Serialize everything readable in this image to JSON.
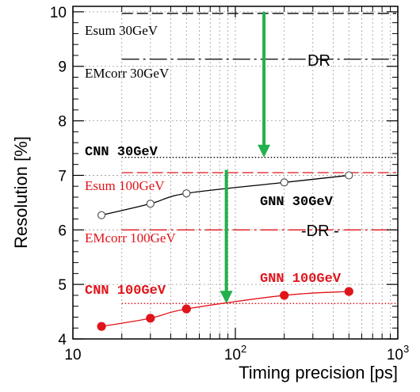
{
  "chart_data": {
    "type": "line",
    "xlabel": "Timing precision [ps]",
    "ylabel": "Resolution [%]",
    "xscale": "log",
    "xlim": [
      10,
      1000
    ],
    "ylim": [
      4,
      10.1
    ],
    "grid": true,
    "x_ticks": [
      {
        "value": 10,
        "label": "10"
      },
      {
        "value": 100,
        "label": "10",
        "sup": "2"
      },
      {
        "value": 1000,
        "label": "10",
        "sup": "3"
      }
    ],
    "y_ticks": [
      "4",
      "5",
      "6",
      "7",
      "8",
      "9",
      "10"
    ],
    "series": [
      {
        "name": "GNN 30GeV",
        "color": "#000000",
        "marker": "open-circle",
        "x": [
          15,
          30,
          50,
          200,
          500
        ],
        "y": [
          6.27,
          6.48,
          6.67,
          6.87,
          7.0
        ]
      },
      {
        "name": "GNN 100GeV",
        "color": "#e0141b",
        "marker": "filled-circle",
        "x": [
          15,
          30,
          50,
          200,
          500
        ],
        "y": [
          4.23,
          4.38,
          4.55,
          4.8,
          4.87
        ]
      }
    ],
    "reference_lines": [
      {
        "label": "Esum 30GeV",
        "y": 9.97,
        "style": "long-dash",
        "color": "#000000",
        "x_from": 20,
        "x_to": 1000
      },
      {
        "label": "EMcorr 30GeV",
        "y": 9.13,
        "style": "dash-dot",
        "color": "#000000",
        "x_from": 20,
        "x_to": 1000
      },
      {
        "label": "CNN 30GeV",
        "y": 7.33,
        "style": "dotted",
        "color": "#000000",
        "x_from": 20,
        "x_to": 1000
      },
      {
        "label": "Esum 100GeV",
        "y": 7.05,
        "style": "long-dash",
        "color": "#e0141b",
        "x_from": 20,
        "x_to": 1000
      },
      {
        "label": "EMcorr 100GeV",
        "y": 6.0,
        "style": "dash-dot",
        "color": "#e0141b",
        "x_from": 20,
        "x_to": 1000
      },
      {
        "label": "CNN 100GeV",
        "y": 4.65,
        "style": "dotted",
        "color": "#e0141b",
        "x_from": 20,
        "x_to": 1000
      }
    ],
    "annotations": [
      {
        "text": "DR",
        "near": "EMcorr 30GeV"
      },
      {
        "text": "DR",
        "near": "EMcorr 100GeV"
      }
    ],
    "arrows": [
      {
        "color": "#22b14c",
        "x": 150,
        "y_from": 10,
        "y_to": 7.33
      },
      {
        "color": "#22b14c",
        "x": 88,
        "y_from": 7.1,
        "y_to": 4.65
      }
    ]
  },
  "labels": {
    "esum30": "Esum 30GeV",
    "emcorr30": "EMcorr 30GeV",
    "cnn30": "CNN 30GeV",
    "esum100": "Esum 100GeV",
    "emcorr100": "EMcorr 100GeV",
    "cnn100": "CNN 100GeV",
    "gnn30": "GNN 30GeV",
    "gnn100": "GNN 100GeV",
    "dr_top": "DR",
    "dr_bottom": "-DR -"
  },
  "colors": {
    "black": "#000000",
    "red": "#e0141b",
    "green": "#22b14c",
    "grid": "#9a9a9a"
  }
}
